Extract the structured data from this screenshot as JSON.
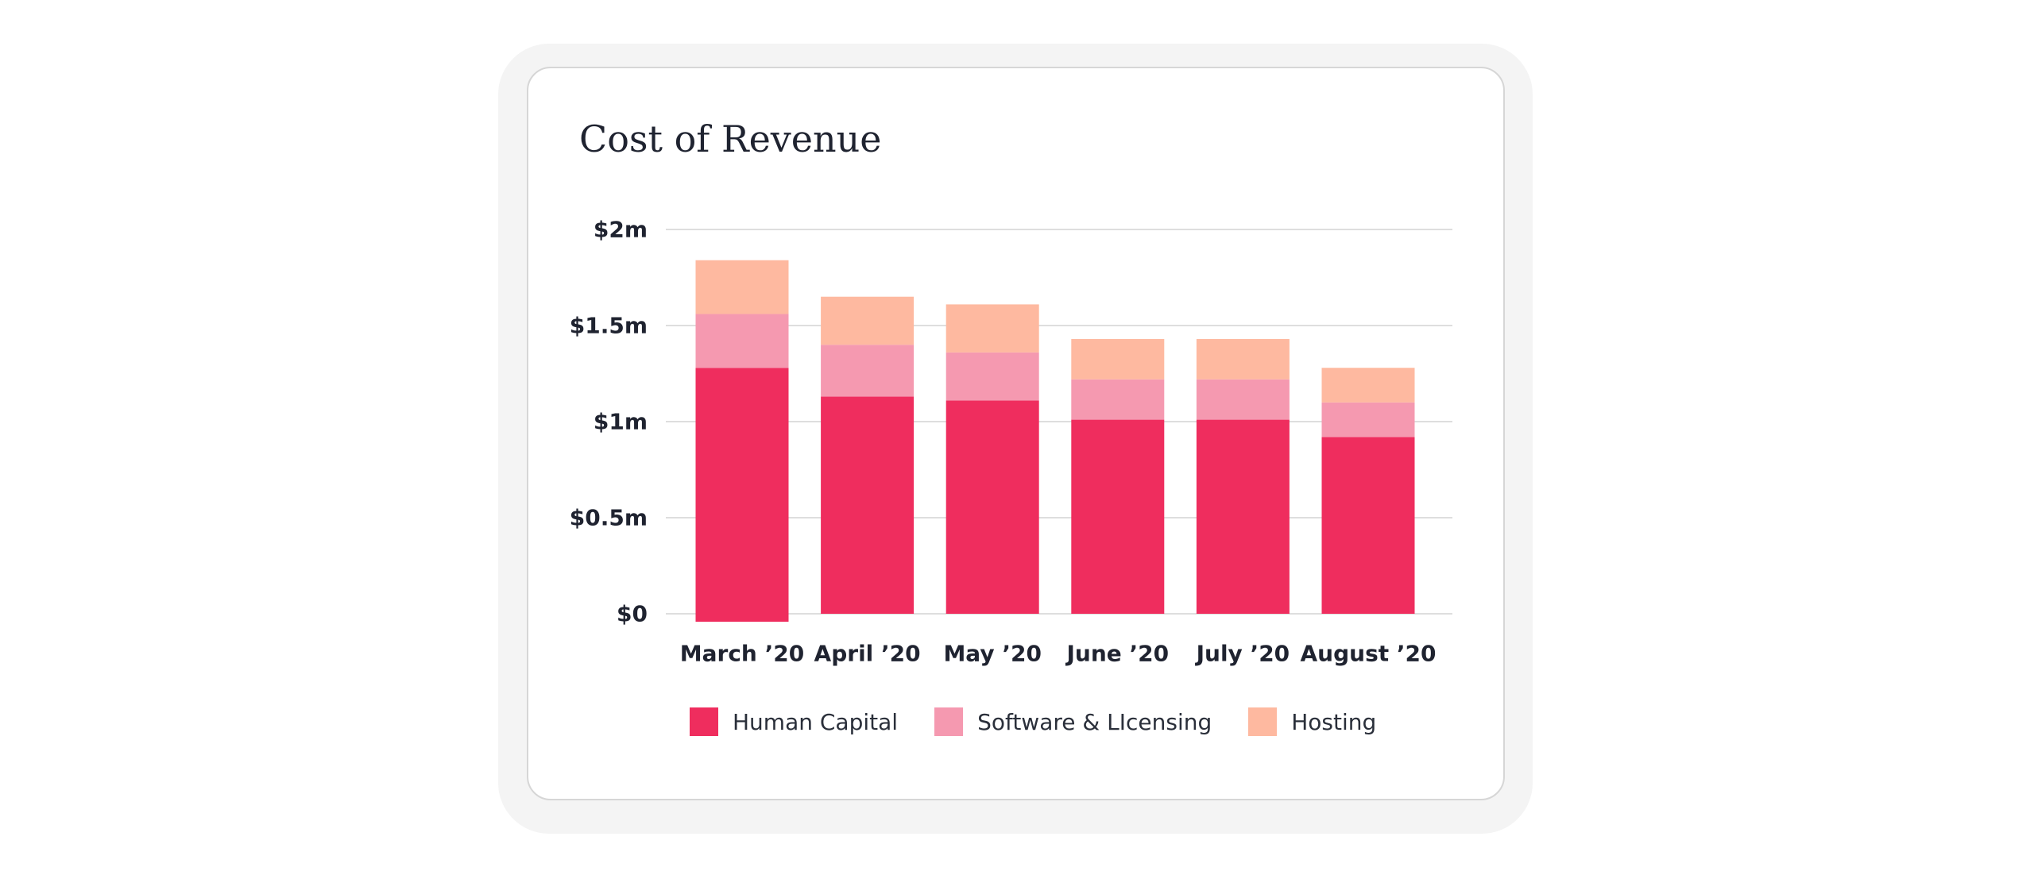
{
  "chart_data": {
    "type": "bar",
    "stacked": true,
    "title": "Cost of Revenue",
    "xlabel": "",
    "ylabel": "",
    "ylim": [
      0,
      2
    ],
    "y_ticks": [
      {
        "value": 0,
        "label": "$0"
      },
      {
        "value": 0.5,
        "label": "$0.5m"
      },
      {
        "value": 1,
        "label": "$1m"
      },
      {
        "value": 1.5,
        "label": "$1.5m"
      },
      {
        "value": 2,
        "label": "$2m"
      }
    ],
    "grid": true,
    "legend_position": "bottom",
    "categories": [
      "March ’20",
      "April ’20",
      "May ’20",
      "June ’20",
      "July ’20",
      "August ’20"
    ],
    "series": [
      {
        "name": "Human Capital",
        "color": "#ef2d5e",
        "values": [
          1.28,
          1.13,
          1.11,
          1.01,
          1.01,
          0.92
        ]
      },
      {
        "name": "Software & LIcensing",
        "color": "#f599b0",
        "values": [
          0.28,
          0.27,
          0.25,
          0.21,
          0.21,
          0.18
        ]
      },
      {
        "name": "Hosting",
        "color": "#feb9a0",
        "values": [
          0.28,
          0.25,
          0.25,
          0.21,
          0.21,
          0.18
        ]
      }
    ]
  }
}
